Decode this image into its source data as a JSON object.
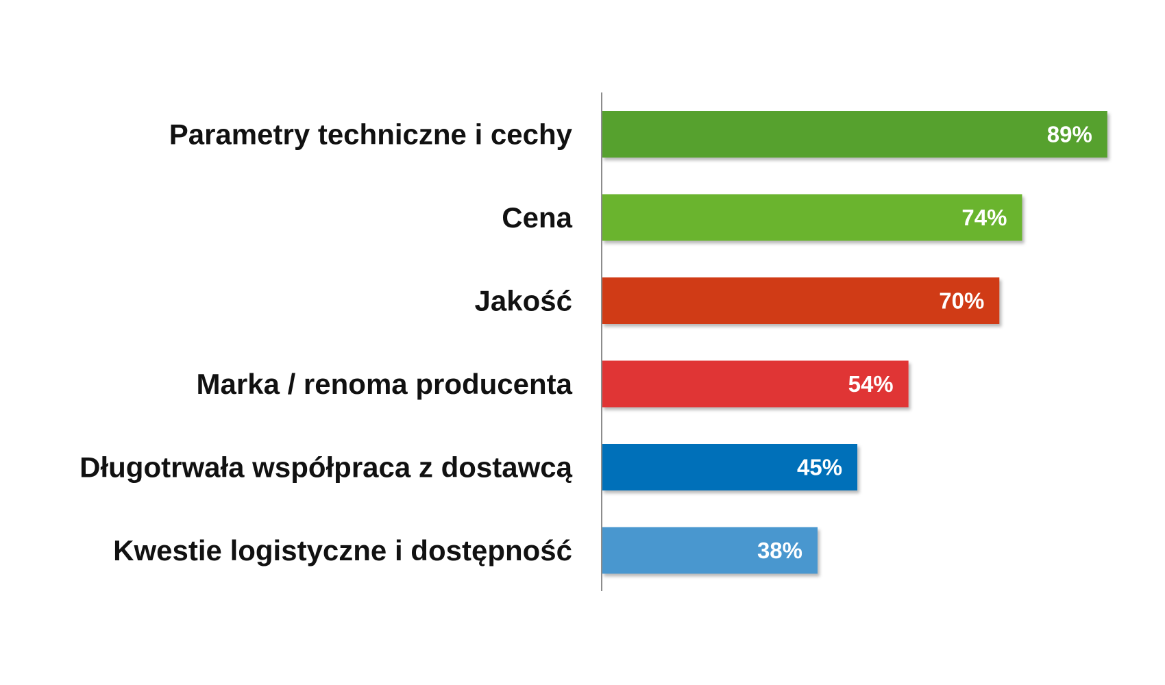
{
  "chart_data": {
    "type": "bar",
    "orientation": "horizontal",
    "categories": [
      "Parametry techniczne i cechy",
      "Cena",
      "Jakość",
      "Marka / renoma producenta",
      "Długotrwała współpraca z dostawcą",
      "Kwestie logistyczne i dostępność"
    ],
    "values": [
      89,
      74,
      70,
      54,
      45,
      38
    ],
    "value_labels": [
      "89%",
      "74%",
      "70%",
      "54%",
      "45%",
      "38%"
    ],
    "bar_colors": [
      "#57a12e",
      "#6ab42d",
      "#d03a12",
      "#e03535",
      "#0070b9",
      "#4a97cf"
    ],
    "title": "",
    "xlabel": "",
    "ylabel": "",
    "xlim": [
      0,
      100
    ],
    "grid": false,
    "legend": "none"
  }
}
